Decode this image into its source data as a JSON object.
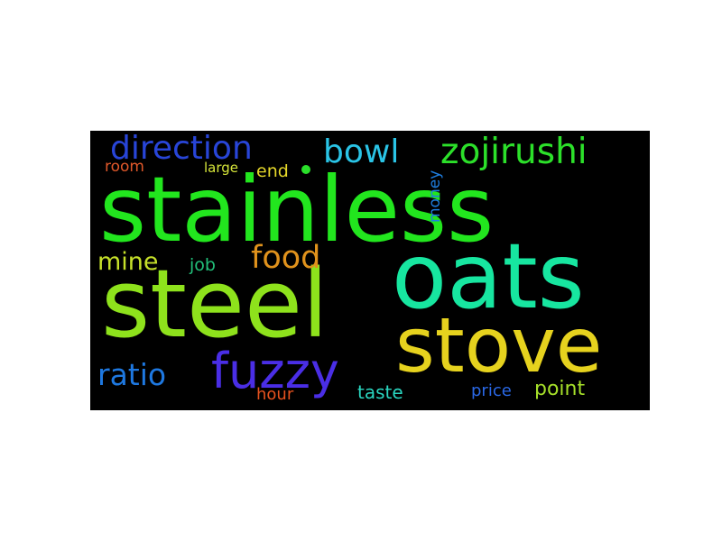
{
  "wordcloud": {
    "background": "#000000",
    "words": [
      {
        "key": "stainless",
        "text": "stainless",
        "color": "#22e61e"
      },
      {
        "key": "steel",
        "text": "steel",
        "color": "#8ee21c"
      },
      {
        "key": "oats",
        "text": "oats",
        "color": "#17e6a0"
      },
      {
        "key": "stove",
        "text": "stove",
        "color": "#e6d21e"
      },
      {
        "key": "fuzzy",
        "text": "fuzzy",
        "color": "#4a2ee6"
      },
      {
        "key": "direction",
        "text": "direction",
        "color": "#2845d8"
      },
      {
        "key": "bowl",
        "text": "bowl",
        "color": "#2ac4e6"
      },
      {
        "key": "zojirushi",
        "text": "zojirushi",
        "color": "#2ce02a"
      },
      {
        "key": "food",
        "text": "food",
        "color": "#e0921c"
      },
      {
        "key": "ratio",
        "text": "ratio",
        "color": "#1e78e0"
      },
      {
        "key": "mine",
        "text": "mine",
        "color": "#c6e02a"
      },
      {
        "key": "money",
        "text": "money",
        "color": "#1e7ee0"
      },
      {
        "key": "job",
        "text": "job",
        "color": "#22c07a"
      },
      {
        "key": "room",
        "text": "room",
        "color": "#e0582a"
      },
      {
        "key": "large",
        "text": "large",
        "color": "#d6e63a"
      },
      {
        "key": "end",
        "text": "end",
        "color": "#e6d82a"
      },
      {
        "key": "taste",
        "text": "taste",
        "color": "#2ad6c0"
      },
      {
        "key": "hour",
        "text": "hour",
        "color": "#e6521e"
      },
      {
        "key": "price",
        "text": "price",
        "color": "#2a68e6"
      },
      {
        "key": "point",
        "text": "point",
        "color": "#a6e02a"
      }
    ],
    "dot_color": "#2ae02a"
  }
}
